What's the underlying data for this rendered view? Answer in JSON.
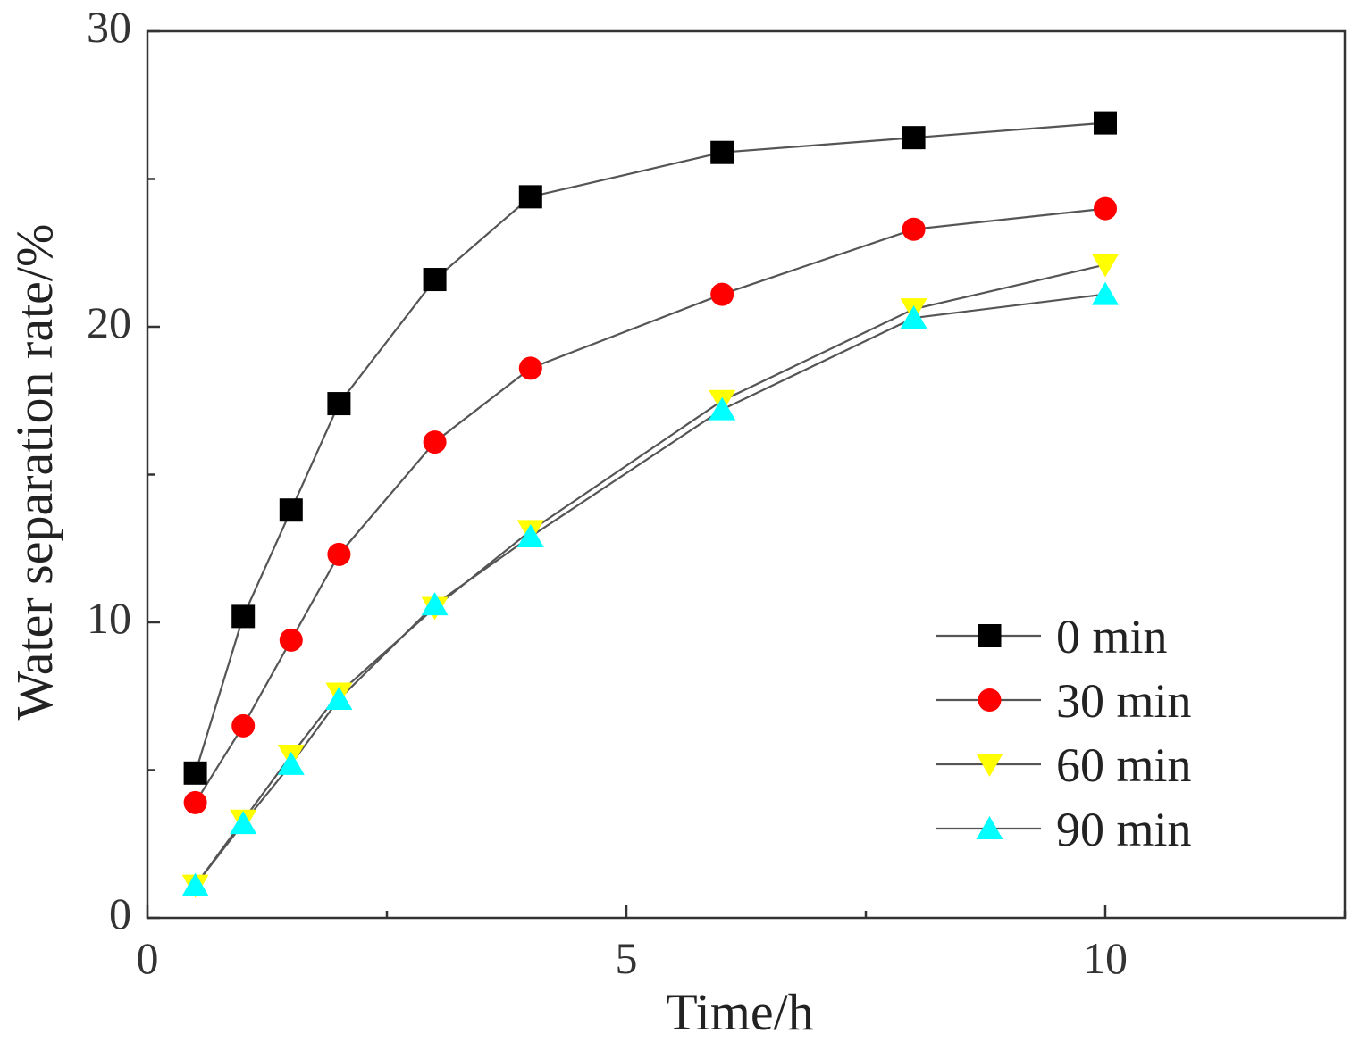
{
  "chart_data": {
    "type": "line",
    "title": "",
    "xlabel": "Time/h",
    "ylabel": "Water separation rate/%",
    "xlim": [
      0,
      12.5
    ],
    "ylim": [
      0,
      30
    ],
    "xticks": [
      0,
      5,
      10
    ],
    "yticks": [
      0,
      10,
      20,
      30
    ],
    "xminor": [
      2.5,
      7.5,
      12.5
    ],
    "yminor": [
      5,
      15,
      25
    ],
    "legend_position": "bottom-right",
    "x": [
      0.5,
      1,
      1.5,
      2,
      3,
      4,
      6,
      8,
      10
    ],
    "series": [
      {
        "name": "0 min",
        "marker": "square",
        "color": "#000000",
        "values": [
          4.9,
          10.2,
          13.8,
          17.4,
          21.6,
          24.4,
          25.9,
          26.4,
          26.9
        ]
      },
      {
        "name": "30 min",
        "marker": "circle",
        "color": "#ff0000",
        "values": [
          3.9,
          6.5,
          9.4,
          12.3,
          16.1,
          18.6,
          21.1,
          23.3,
          24.0
        ]
      },
      {
        "name": "60 min",
        "marker": "triangle-down",
        "color": "#ffff00",
        "values": [
          1.1,
          3.3,
          5.5,
          7.6,
          10.5,
          13.1,
          17.5,
          20.6,
          22.1
        ]
      },
      {
        "name": "90 min",
        "marker": "triangle-up",
        "color": "#00ffff",
        "values": [
          1.1,
          3.2,
          5.2,
          7.4,
          10.6,
          12.9,
          17.2,
          20.3,
          21.1
        ]
      }
    ]
  }
}
